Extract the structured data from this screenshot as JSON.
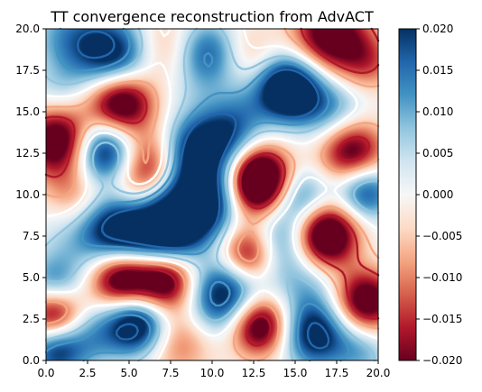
{
  "chart_data": {
    "type": "heatmap",
    "title": "TT convergence reconstruction from AdvACT",
    "xlabel": "",
    "ylabel": "",
    "xlim": [
      0,
      20
    ],
    "ylim": [
      0,
      20
    ],
    "x_ticks": [
      "0.0",
      "2.5",
      "5.0",
      "7.5",
      "10.0",
      "12.5",
      "15.0",
      "17.5",
      "20.0"
    ],
    "y_ticks": [
      "0.0",
      "2.5",
      "5.0",
      "7.5",
      "10.0",
      "12.5",
      "15.0",
      "17.5",
      "20.0"
    ],
    "colorbar": {
      "colormap": "RdBu",
      "vmin": -0.02,
      "vmax": 0.02,
      "ticks": [
        "0.020",
        "0.015",
        "0.010",
        "0.005",
        "0.000",
        "−0.005",
        "−0.010",
        "−0.015",
        "−0.020"
      ]
    },
    "contour_overlay": true,
    "grid": false,
    "blobs": [
      {
        "x": 1.5,
        "y": 19.5,
        "v": 0.012,
        "s": 1.6
      },
      {
        "x": 4.2,
        "y": 18.3,
        "v": 0.024,
        "s": 1.6
      },
      {
        "x": 7.0,
        "y": 18.8,
        "v": -0.01,
        "s": 1.5
      },
      {
        "x": 9.8,
        "y": 18.6,
        "v": 0.018,
        "s": 1.4
      },
      {
        "x": 12.0,
        "y": 18.6,
        "v": -0.008,
        "s": 1.4
      },
      {
        "x": 14.8,
        "y": 18.0,
        "v": 0.006,
        "s": 1.5
      },
      {
        "x": 17.0,
        "y": 19.6,
        "v": -0.026,
        "s": 1.6
      },
      {
        "x": 19.3,
        "y": 18.0,
        "v": -0.012,
        "s": 1.3
      },
      {
        "x": 0.8,
        "y": 16.2,
        "v": 0.006,
        "s": 1.2
      },
      {
        "x": 4.5,
        "y": 15.6,
        "v": -0.03,
        "s": 1.4
      },
      {
        "x": 9.2,
        "y": 16.0,
        "v": 0.004,
        "s": 1.5
      },
      {
        "x": 12.2,
        "y": 15.2,
        "v": 0.008,
        "s": 1.3
      },
      {
        "x": 14.6,
        "y": 16.3,
        "v": 0.03,
        "s": 1.2
      },
      {
        "x": 17.0,
        "y": 15.2,
        "v": 0.014,
        "s": 1.5
      },
      {
        "x": 0.8,
        "y": 13.2,
        "v": -0.028,
        "s": 1.5
      },
      {
        "x": 3.5,
        "y": 12.6,
        "v": 0.028,
        "s": 1.4
      },
      {
        "x": 6.2,
        "y": 12.0,
        "v": -0.018,
        "s": 1.4
      },
      {
        "x": 8.8,
        "y": 12.6,
        "v": 0.02,
        "s": 1.4
      },
      {
        "x": 10.8,
        "y": 13.4,
        "v": 0.016,
        "s": 1.3
      },
      {
        "x": 12.8,
        "y": 10.8,
        "v": -0.04,
        "s": 1.4
      },
      {
        "x": 15.8,
        "y": 12.6,
        "v": 0.0,
        "s": 1.4
      },
      {
        "x": 18.4,
        "y": 12.6,
        "v": -0.024,
        "s": 1.4
      },
      {
        "x": 1.8,
        "y": 10.0,
        "v": -0.01,
        "s": 1.3
      },
      {
        "x": 5.2,
        "y": 10.2,
        "v": -0.01,
        "s": 1.3
      },
      {
        "x": 9.5,
        "y": 9.8,
        "v": 0.03,
        "s": 1.5
      },
      {
        "x": 15.2,
        "y": 9.8,
        "v": 0.018,
        "s": 1.3
      },
      {
        "x": 19.2,
        "y": 10.2,
        "v": 0.02,
        "s": 1.2
      },
      {
        "x": 1.2,
        "y": 7.2,
        "v": 0.004,
        "s": 1.4
      },
      {
        "x": 4.5,
        "y": 7.8,
        "v": 0.03,
        "s": 1.7
      },
      {
        "x": 7.5,
        "y": 8.0,
        "v": 0.028,
        "s": 1.4
      },
      {
        "x": 12.2,
        "y": 6.4,
        "v": -0.022,
        "s": 1.2
      },
      {
        "x": 14.2,
        "y": 7.2,
        "v": 0.014,
        "s": 1.3
      },
      {
        "x": 16.8,
        "y": 7.5,
        "v": -0.034,
        "s": 1.4
      },
      {
        "x": 19.4,
        "y": 6.4,
        "v": 0.002,
        "s": 1.2
      },
      {
        "x": 0.5,
        "y": 4.6,
        "v": 0.014,
        "s": 1.2
      },
      {
        "x": 4.5,
        "y": 5.0,
        "v": -0.03,
        "s": 1.3
      },
      {
        "x": 7.2,
        "y": 4.8,
        "v": -0.026,
        "s": 1.3
      },
      {
        "x": 10.8,
        "y": 3.8,
        "v": 0.026,
        "s": 1.6
      },
      {
        "x": 15.8,
        "y": 4.8,
        "v": 0.01,
        "s": 1.6
      },
      {
        "x": 19.2,
        "y": 3.6,
        "v": -0.026,
        "s": 1.4
      },
      {
        "x": 0.5,
        "y": 2.8,
        "v": -0.024,
        "s": 1.2
      },
      {
        "x": 2.8,
        "y": 1.5,
        "v": 0.01,
        "s": 1.3
      },
      {
        "x": 5.5,
        "y": 2.2,
        "v": 0.028,
        "s": 1.3
      },
      {
        "x": 8.0,
        "y": 1.2,
        "v": -0.012,
        "s": 1.5
      },
      {
        "x": 12.8,
        "y": 2.2,
        "v": -0.03,
        "s": 1.3
      },
      {
        "x": 16.2,
        "y": 1.6,
        "v": 0.024,
        "s": 1.4
      },
      {
        "x": 19.0,
        "y": 0.6,
        "v": 0.01,
        "s": 1.2
      },
      {
        "x": 0.6,
        "y": 0.6,
        "v": 0.02,
        "s": 1.2
      }
    ]
  }
}
